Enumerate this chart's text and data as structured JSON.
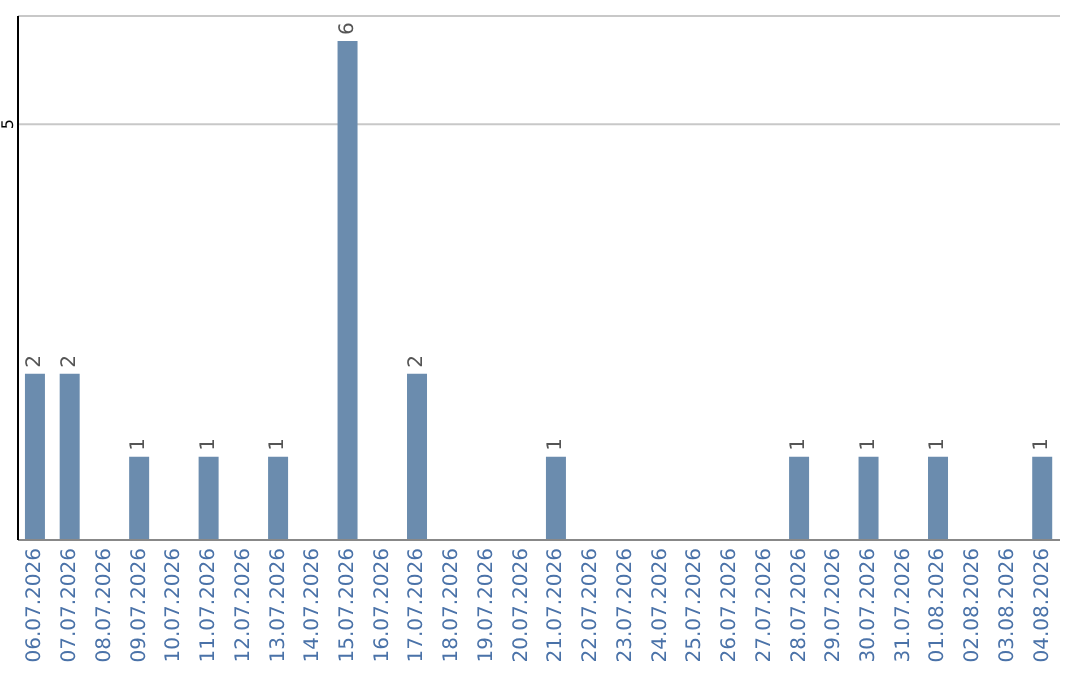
{
  "chart_data": {
    "type": "bar",
    "categories": [
      "06.07.2026",
      "07.07.2026",
      "08.07.2026",
      "09.07.2026",
      "10.07.2026",
      "11.07.2026",
      "12.07.2026",
      "13.07.2026",
      "14.07.2026",
      "15.07.2026",
      "16.07.2026",
      "17.07.2026",
      "18.07.2026",
      "19.07.2026",
      "20.07.2026",
      "21.07.2026",
      "22.07.2026",
      "23.07.2026",
      "24.07.2026",
      "25.07.2026",
      "26.07.2026",
      "27.07.2026",
      "28.07.2026",
      "29.07.2026",
      "30.07.2026",
      "31.07.2026",
      "01.08.2026",
      "02.08.2026",
      "03.08.2026",
      "04.08.2026"
    ],
    "values": [
      2,
      2,
      0,
      1,
      0,
      1,
      0,
      1,
      0,
      6,
      0,
      2,
      0,
      0,
      0,
      1,
      0,
      0,
      0,
      0,
      0,
      0,
      1,
      0,
      1,
      0,
      1,
      0,
      0,
      1
    ],
    "value_labels": [
      "2",
      "2",
      null,
      "1",
      null,
      "1",
      null,
      "1",
      null,
      "6",
      null,
      "2",
      null,
      null,
      null,
      "1",
      null,
      null,
      null,
      null,
      null,
      null,
      "1",
      null,
      "1",
      null,
      "1",
      null,
      null,
      "1"
    ],
    "color": "#6b8cae",
    "ylim": [
      0,
      6.3
    ],
    "yticks": [
      5
    ],
    "grid": "y"
  }
}
